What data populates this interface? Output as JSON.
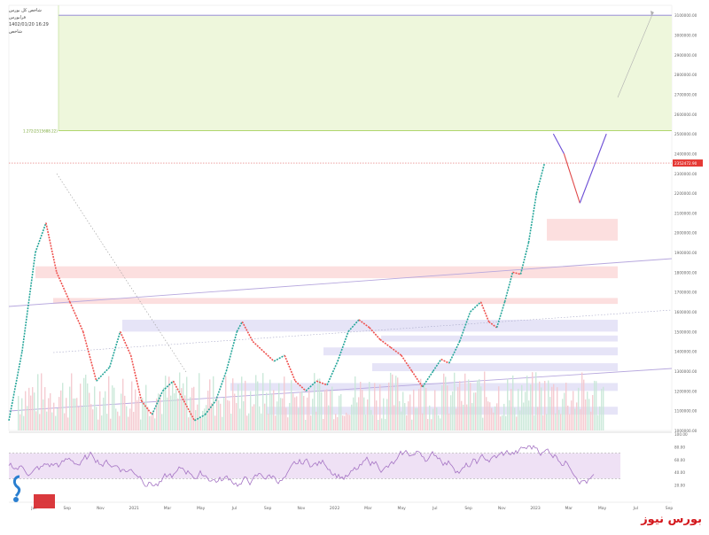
{
  "header": {
    "line1": "شاخص کل بورس",
    "line2": "فرابورس",
    "line3": "1402/01/20 16:29",
    "line4": "شاخص"
  },
  "brand": {
    "text": "بورس نیوز"
  },
  "chart_data": {
    "type": "line",
    "title": "",
    "x_ticks": [
      "Jul",
      "Sep",
      "Nov",
      "2021",
      "Mar",
      "May",
      "Jul",
      "Sep",
      "Nov",
      "2022",
      "Mar",
      "May",
      "Jul",
      "Sep",
      "Nov",
      "2023",
      "Mar",
      "May",
      "Jul",
      "Sep"
    ],
    "y_ticks": [
      "3100000.00",
      "3000000.00",
      "2900000.00",
      "2800000.00",
      "2700000.00",
      "2600000.00",
      "2500000.00",
      "2400000.00",
      "2300000.00",
      "2200000.00",
      "2100000.00",
      "2000000.00",
      "1900000.00",
      "1800000.00",
      "1700000.00",
      "1600000.00",
      "1500000.00",
      "1400000.00",
      "1300000.00",
      "1200000.00",
      "1100000.00",
      "1000000.00"
    ],
    "ylim": [
      1000000,
      3150000
    ],
    "price_series": [
      [
        0,
        1050000
      ],
      [
        5,
        1400000
      ],
      [
        10,
        1900000
      ],
      [
        14,
        2050000
      ],
      [
        18,
        1800000
      ],
      [
        23,
        1650000
      ],
      [
        28,
        1500000
      ],
      [
        33,
        1250000
      ],
      [
        38,
        1320000
      ],
      [
        42,
        1500000
      ],
      [
        46,
        1380000
      ],
      [
        50,
        1150000
      ],
      [
        54,
        1080000
      ],
      [
        58,
        1200000
      ],
      [
        62,
        1250000
      ],
      [
        66,
        1150000
      ],
      [
        70,
        1050000
      ],
      [
        74,
        1080000
      ],
      [
        78,
        1150000
      ],
      [
        82,
        1300000
      ],
      [
        86,
        1500000
      ],
      [
        88,
        1550000
      ],
      [
        92,
        1450000
      ],
      [
        96,
        1400000
      ],
      [
        100,
        1350000
      ],
      [
        104,
        1380000
      ],
      [
        108,
        1250000
      ],
      [
        112,
        1200000
      ],
      [
        116,
        1250000
      ],
      [
        120,
        1230000
      ],
      [
        124,
        1350000
      ],
      [
        128,
        1500000
      ],
      [
        132,
        1560000
      ],
      [
        136,
        1520000
      ],
      [
        140,
        1460000
      ],
      [
        144,
        1420000
      ],
      [
        148,
        1380000
      ],
      [
        152,
        1300000
      ],
      [
        156,
        1220000
      ],
      [
        160,
        1300000
      ],
      [
        163,
        1360000
      ],
      [
        166,
        1340000
      ],
      [
        170,
        1450000
      ],
      [
        174,
        1600000
      ],
      [
        178,
        1650000
      ],
      [
        181,
        1550000
      ],
      [
        184,
        1520000
      ],
      [
        187,
        1650000
      ],
      [
        190,
        1800000
      ],
      [
        193,
        1790000
      ],
      [
        196,
        1950000
      ],
      [
        199,
        2200000
      ],
      [
        202,
        2350000
      ]
    ],
    "current_price_label": "2352472.90",
    "fib_label": "1.272(2515688.22)",
    "rsi_ticks": [
      "100.00",
      "80.00",
      "60.00",
      "40.00",
      "20.00"
    ],
    "rsi_band": [
      30,
      70
    ],
    "resistance_zones": [
      {
        "low": 1960000,
        "high": 2070000
      },
      {
        "low": 1770000,
        "high": 1830000
      },
      {
        "low": 1640000,
        "high": 1670000
      }
    ],
    "support_zones": [
      {
        "low": 1500000,
        "high": 1560000
      },
      {
        "low": 1450000,
        "high": 1480000
      },
      {
        "low": 1380000,
        "high": 1420000
      },
      {
        "low": 1300000,
        "high": 1340000
      },
      {
        "low": 1200000,
        "high": 1240000
      },
      {
        "low": 1080000,
        "high": 1120000
      }
    ],
    "scenario_path": [
      [
        202,
        2500000
      ],
      [
        206,
        2400000
      ],
      [
        212,
        2150000
      ],
      [
        222,
        2500000
      ]
    ],
    "upper_target": 3100000
  }
}
